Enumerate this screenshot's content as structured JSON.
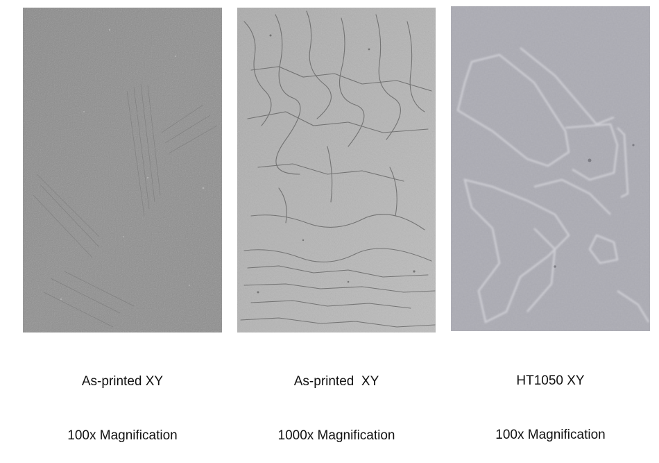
{
  "panels": [
    {
      "line1": "As-printed XY",
      "line2": "100x Magnification"
    },
    {
      "line1": "As-printed  XY",
      "line2": "1000x Magnification"
    },
    {
      "line1": "HT1050 XY",
      "line2": "100x Magnification"
    }
  ],
  "colors": {
    "panel1_base": "#8c8c8c",
    "panel2_base": "#b3b3b3",
    "panel3_base": "#acacb4",
    "caption_text": "#111111"
  }
}
